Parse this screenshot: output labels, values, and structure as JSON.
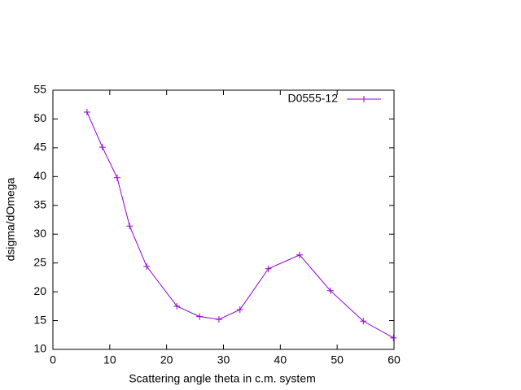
{
  "chart_data": {
    "type": "line",
    "xlabel": "Scattering angle theta in c.m. system",
    "ylabel": "dsigma/dOmega",
    "x": [
      6.0,
      8.7,
      11.3,
      13.5,
      16.5,
      21.8,
      25.8,
      29.2,
      32.9,
      37.9,
      43.4,
      48.8,
      54.6,
      59.9
    ],
    "series": [
      {
        "name": "D0555-12",
        "color": "#9400d3",
        "values": [
          51.2,
          45.1,
          39.8,
          31.4,
          24.4,
          17.5,
          15.7,
          15.2,
          16.9,
          24.0,
          26.4,
          20.2,
          14.9,
          12.0
        ]
      }
    ],
    "xlim": [
      0,
      60
    ],
    "xticks": [
      0,
      10,
      20,
      30,
      40,
      50,
      60
    ],
    "ylim": [
      10,
      55
    ],
    "yticks": [
      10,
      15,
      20,
      25,
      30,
      35,
      40,
      45,
      50,
      55
    ],
    "legend": "top-right",
    "grid": false
  }
}
